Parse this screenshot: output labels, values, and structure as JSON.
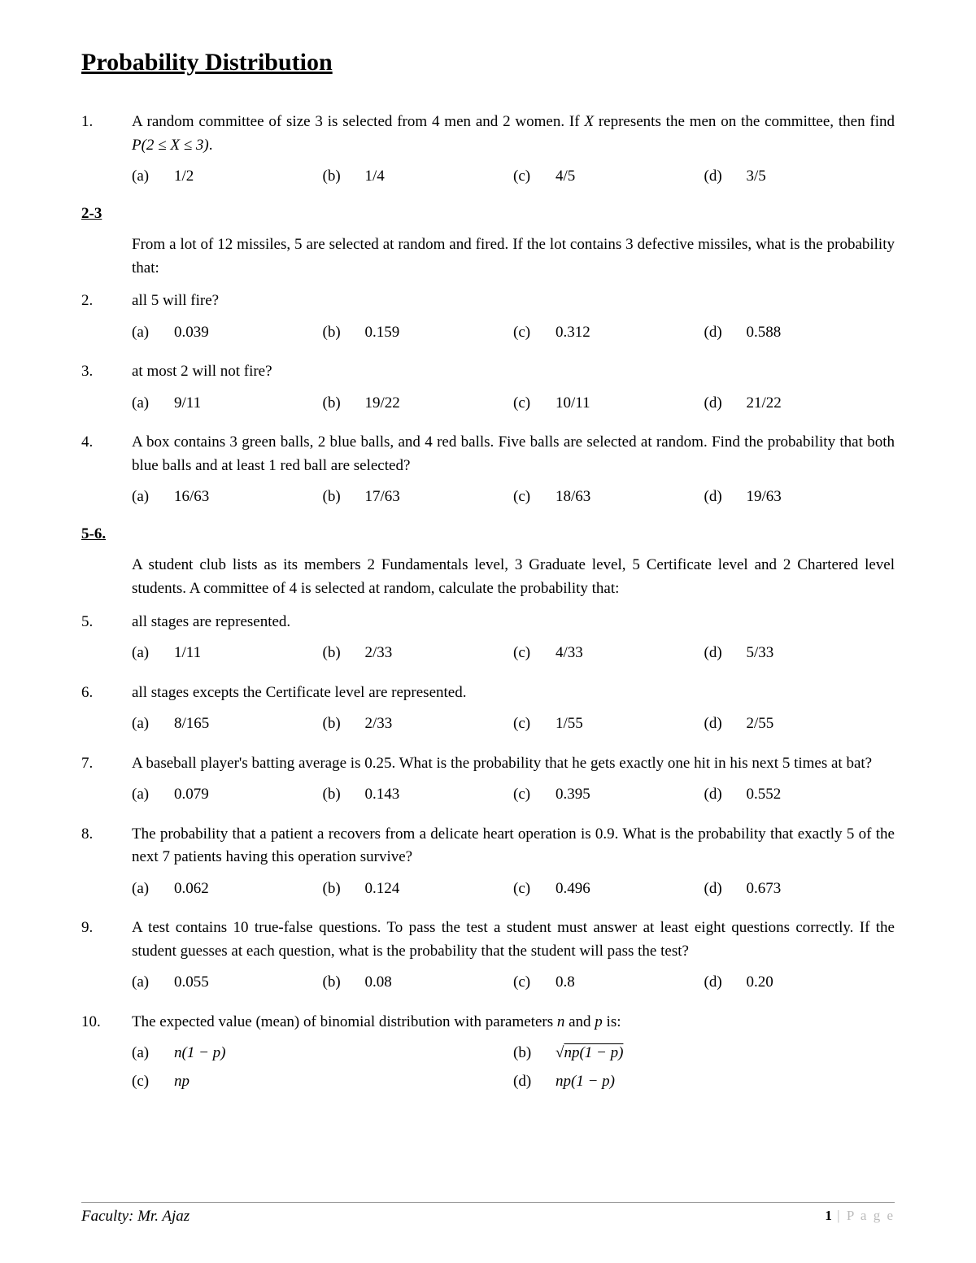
{
  "title": "Probability Distribution",
  "section_2_3": "2-3",
  "section_5_6": "5-6.",
  "q1": {
    "num": "1.",
    "text_before": "A random committee of size 3 is selected from 4 men and 2 women. If ",
    "var": "X",
    "text_mid": " represents the men on the committee, then find ",
    "expr": "P(2 ≤ X ≤ 3)",
    "text_after": ".",
    "a": "1/2",
    "b": "1/4",
    "c": "4/5",
    "d": "3/5"
  },
  "intro_2_3": "From a lot of 12 missiles, 5 are selected at random and fired. If the lot contains 3 defective missiles, what is the probability that:",
  "q2": {
    "num": "2.",
    "text": "all 5 will fire?",
    "a": "0.039",
    "b": "0.159",
    "c": "0.312",
    "d": "0.588"
  },
  "q3": {
    "num": "3.",
    "text": "at most 2 will not fire?",
    "a": "9/11",
    "b": "19/22",
    "c": "10/11",
    "d": "21/22"
  },
  "q4": {
    "num": "4.",
    "text": "A box contains 3 green balls, 2 blue balls, and 4 red balls. Five balls are selected at random. Find the probability that both blue balls and at least 1 red ball are selected?",
    "a": "16/63",
    "b": "17/63",
    "c": "18/63",
    "d": "19/63"
  },
  "intro_5_6": "A student club lists as its members 2 Fundamentals level, 3 Graduate level, 5 Certificate level and 2 Chartered level students. A committee of 4 is selected at random, calculate the probability that:",
  "q5": {
    "num": "5.",
    "text": "all stages are represented.",
    "a": "1/11",
    "b": "2/33",
    "c": "4/33",
    "d": "5/33"
  },
  "q6": {
    "num": "6.",
    "text": "all stages excepts the Certificate level are represented.",
    "a": "8/165",
    "b": "2/33",
    "c": "1/55",
    "d": "2/55"
  },
  "q7": {
    "num": "7.",
    "text": "A baseball player's batting average is 0.25. What is the probability that he gets exactly one hit in his next 5 times at bat?",
    "a": "0.079",
    "b": "0.143",
    "c": "0.395",
    "d": "0.552"
  },
  "q8": {
    "num": "8.",
    "text": "The probability that a patient a recovers from a delicate heart operation is 0.9. What is the probability that exactly 5 of the next 7 patients having this operation survive?",
    "a": "0.062",
    "b": "0.124",
    "c": "0.496",
    "d": "0.673"
  },
  "q9": {
    "num": "9.",
    "text": "A test contains 10 true-false questions. To pass the test a student must answer at least eight questions correctly. If the student guesses at each question, what is the probability that the student will pass the test?",
    "a": "0.055",
    "b": "0.08",
    "c": "0.8",
    "d": "0.20"
  },
  "q10": {
    "num": "10.",
    "text_before": "The expected value (mean) of binomial distribution with parameters ",
    "var_n": "n",
    "text_and": " and ",
    "var_p": "p",
    "text_after": " is:",
    "a": "n(1 − p)",
    "b_sqrt": "np(1 − p)",
    "c": "np",
    "d": "np(1 − p)"
  },
  "labels": {
    "a": "(a)",
    "b": "(b)",
    "c": "(c)",
    "d": "(d)"
  },
  "footer": {
    "left": "Faculty: Mr. Ajaz",
    "page_num": "1",
    "page_sep": " | ",
    "page_word": "P a g e"
  }
}
